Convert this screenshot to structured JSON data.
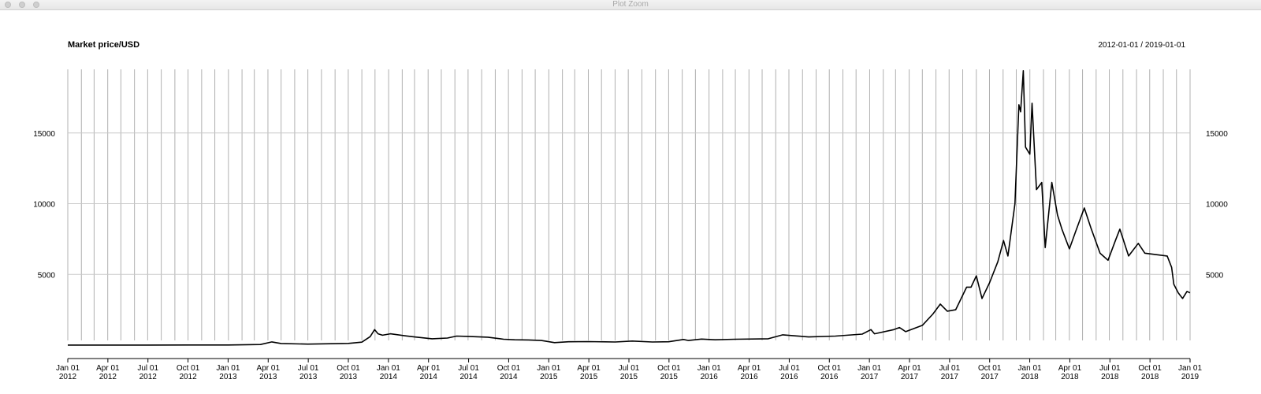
{
  "window": {
    "title": "Plot Zoom"
  },
  "chart_data": {
    "type": "line",
    "title": "Market price/USD",
    "date_range": "2012-01-01 / 2019-01-01",
    "xlim": [
      "2012-01-01",
      "2019-01-01"
    ],
    "ylim": [
      0,
      19500
    ],
    "y_ticks": [
      5000,
      10000,
      15000
    ],
    "y_tick_labels": [
      "5000",
      "10000",
      "15000"
    ],
    "x_tick_labels": [
      [
        "Jan 01",
        "2012"
      ],
      [
        "Apr 01",
        "2012"
      ],
      [
        "Jul 01",
        "2012"
      ],
      [
        "Oct 01",
        "2012"
      ],
      [
        "Jan 01",
        "2013"
      ],
      [
        "Apr 01",
        "2013"
      ],
      [
        "Jul 01",
        "2013"
      ],
      [
        "Oct 01",
        "2013"
      ],
      [
        "Jan 01",
        "2014"
      ],
      [
        "Apr 01",
        "2014"
      ],
      [
        "Jul 01",
        "2014"
      ],
      [
        "Oct 01",
        "2014"
      ],
      [
        "Jan 01",
        "2015"
      ],
      [
        "Apr 01",
        "2015"
      ],
      [
        "Jul 01",
        "2015"
      ],
      [
        "Oct 01",
        "2015"
      ],
      [
        "Jan 01",
        "2016"
      ],
      [
        "Apr 01",
        "2016"
      ],
      [
        "Jul 01",
        "2016"
      ],
      [
        "Oct 01",
        "2016"
      ],
      [
        "Jan 01",
        "2017"
      ],
      [
        "Apr 01",
        "2017"
      ],
      [
        "Jul 01",
        "2017"
      ],
      [
        "Oct 01",
        "2017"
      ],
      [
        "Jan 01",
        "2018"
      ],
      [
        "Apr 01",
        "2018"
      ],
      [
        "Jul 01",
        "2018"
      ],
      [
        "Oct 01",
        "2018"
      ],
      [
        "Jan 01",
        "2019"
      ]
    ],
    "grid": true,
    "vertical_grid": "monthly",
    "series": [
      {
        "color": "#000000",
        "x": [
          "2012-01-01",
          "2012-04-01",
          "2012-07-01",
          "2012-10-01",
          "2013-01-01",
          "2013-03-15",
          "2013-04-10",
          "2013-05-01",
          "2013-07-01",
          "2013-10-01",
          "2013-11-01",
          "2013-11-20",
          "2013-11-30",
          "2013-12-08",
          "2013-12-18",
          "2014-01-05",
          "2014-02-10",
          "2014-03-01",
          "2014-04-10",
          "2014-05-15",
          "2014-06-05",
          "2014-07-01",
          "2014-08-15",
          "2014-09-20",
          "2014-10-15",
          "2014-11-15",
          "2014-12-15",
          "2015-01-14",
          "2015-02-15",
          "2015-04-01",
          "2015-06-01",
          "2015-07-10",
          "2015-08-25",
          "2015-10-01",
          "2015-11-04",
          "2015-11-15",
          "2015-12-15",
          "2016-01-15",
          "2016-03-01",
          "2016-05-15",
          "2016-06-17",
          "2016-07-15",
          "2016-08-15",
          "2016-10-15",
          "2016-12-15",
          "2017-01-04",
          "2017-01-12",
          "2017-02-25",
          "2017-03-10",
          "2017-03-24",
          "2017-05-01",
          "2017-05-25",
          "2017-06-11",
          "2017-06-27",
          "2017-07-16",
          "2017-08-10",
          "2017-08-20",
          "2017-09-01",
          "2017-09-14",
          "2017-10-01",
          "2017-10-20",
          "2017-11-02",
          "2017-11-12",
          "2017-11-28",
          "2017-12-07",
          "2017-12-11",
          "2017-12-17",
          "2017-12-22",
          "2018-01-01",
          "2018-01-06",
          "2018-01-16",
          "2018-01-28",
          "2018-02-05",
          "2018-02-20",
          "2018-03-05",
          "2018-03-15",
          "2018-04-01",
          "2018-04-15",
          "2018-05-05",
          "2018-05-20",
          "2018-06-10",
          "2018-06-28",
          "2018-07-15",
          "2018-07-25",
          "2018-08-14",
          "2018-09-05",
          "2018-09-20",
          "2018-10-15",
          "2018-11-10",
          "2018-11-20",
          "2018-11-25",
          "2018-12-05",
          "2018-12-15",
          "2018-12-25",
          "2019-01-01"
        ],
        "y": [
          5,
          5,
          7,
          12,
          13,
          47,
          230,
          115,
          70,
          125,
          210,
          600,
          1100,
          800,
          700,
          800,
          650,
          580,
          450,
          500,
          640,
          620,
          560,
          420,
          380,
          370,
          330,
          180,
          240,
          250,
          225,
          290,
          225,
          240,
          400,
          330,
          430,
          380,
          420,
          450,
          730,
          660,
          580,
          640,
          780,
          1100,
          800,
          1100,
          1250,
          950,
          1400,
          2200,
          2900,
          2400,
          2500,
          4100,
          4100,
          4900,
          3300,
          4400,
          5900,
          7400,
          6300,
          10000,
          17000,
          16500,
          19400,
          14000,
          13500,
          17100,
          11000,
          11500,
          6900,
          11500,
          9200,
          8200,
          6800,
          8000,
          9700,
          8300,
          6500,
          6000,
          7400,
          8200,
          6300,
          7200,
          6500,
          6400,
          6300,
          5500,
          4300,
          3700,
          3300,
          3800,
          3700
        ]
      }
    ]
  }
}
